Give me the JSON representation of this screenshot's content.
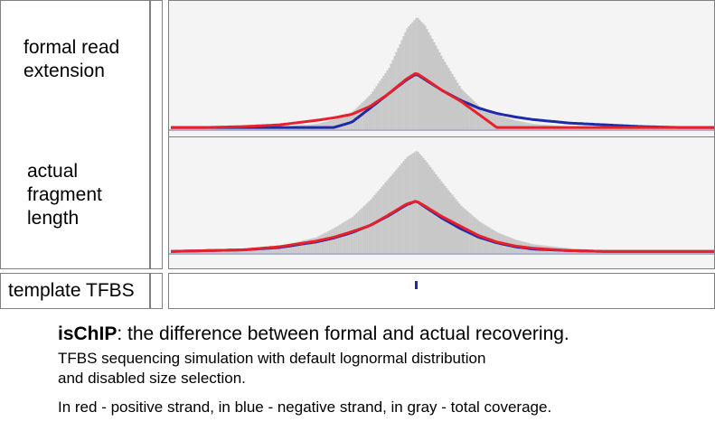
{
  "tracks": [
    {
      "label": "formal read\nextension"
    },
    {
      "label": "actual\nfragment\nlength"
    }
  ],
  "tfbs_track": {
    "label": "template TFBS"
  },
  "caption": {
    "title_bold": "isChIP",
    "title_rest": ": the difference between formal and actual recovering.",
    "subtitle_line1": "TFBS sequencing simulation with default lognormal distribution",
    "subtitle_line2": "and disabled size selection.",
    "legend": "In red - positive strand, in blue - negative strand, in gray - total coverage."
  },
  "colors": {
    "positive_strand": "#e8202a",
    "negative_strand": "#1e2aa8",
    "total_coverage": "#c8c8c8",
    "tfbs_marker": "#1e2aa8"
  },
  "chart_data": [
    {
      "type": "area",
      "title": "formal read extension",
      "x": [
        0,
        40,
        80,
        120,
        160,
        180,
        200,
        220,
        240,
        260,
        271,
        280,
        300,
        320,
        340,
        360,
        380,
        400,
        440,
        480,
        520,
        560,
        600
      ],
      "series": [
        {
          "name": "total coverage",
          "values": [
            2,
            2,
            2,
            3,
            6,
            11,
            20,
            40,
            70,
            115,
            128,
            118,
            80,
            46,
            26,
            16,
            10,
            6,
            3,
            2,
            2,
            2,
            2
          ]
        },
        {
          "name": "positive strand",
          "values": [
            2,
            2,
            3,
            5,
            10,
            13,
            17,
            26,
            40,
            57,
            64,
            58,
            44,
            32,
            17,
            2,
            2,
            2,
            2,
            2,
            2,
            2,
            2
          ]
        },
        {
          "name": "negative strand",
          "values": [
            2,
            2,
            2,
            2,
            2,
            2,
            8,
            24,
            40,
            56,
            63,
            57,
            44,
            33,
            24,
            18,
            14,
            11,
            7,
            5,
            3,
            2,
            2
          ]
        }
      ],
      "ylim": [
        0,
        140
      ]
    },
    {
      "type": "area",
      "title": "actual fragment length",
      "x": [
        0,
        40,
        80,
        120,
        160,
        180,
        200,
        220,
        240,
        260,
        271,
        280,
        300,
        320,
        340,
        360,
        380,
        400,
        440,
        480,
        520,
        560,
        600
      ],
      "series": [
        {
          "name": "total coverage",
          "values": [
            2,
            3,
            5,
            9,
            20,
            32,
            46,
            68,
            95,
            122,
            130,
            118,
            88,
            60,
            40,
            26,
            17,
            11,
            6,
            3,
            2,
            2,
            2
          ]
        },
        {
          "name": "positive strand",
          "values": [
            2,
            3,
            4,
            8,
            15,
            20,
            27,
            35,
            48,
            62,
            66,
            60,
            46,
            34,
            22,
            14,
            9,
            6,
            3,
            2,
            2,
            2,
            2
          ]
        },
        {
          "name": "negative strand",
          "values": [
            2,
            3,
            4,
            7,
            14,
            19,
            26,
            35,
            47,
            61,
            66,
            59,
            44,
            31,
            20,
            13,
            8,
            5,
            3,
            2,
            2,
            2,
            2
          ]
        }
      ],
      "ylim": [
        0,
        140
      ]
    }
  ],
  "tfbs_position": 271
}
